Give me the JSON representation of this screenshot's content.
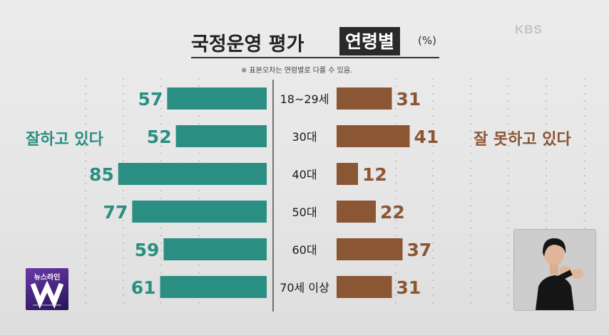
{
  "header": {
    "broadcaster_logo": "KBS",
    "title": "국정운영 평가",
    "title_highlight": "연령별",
    "unit": "(%)",
    "note": "※ 표본오차는 연령별로 다를 수 있음."
  },
  "legend": {
    "left_label": "잘하고 있다",
    "right_label": "잘 못하고 있다"
  },
  "colors": {
    "positive": "#2a8f82",
    "positive_text": "#2a8f82",
    "negative": "#8b5634",
    "negative_text": "#8b5634",
    "center_line": "#333333"
  },
  "program_logo": {
    "text": "뉴스라인",
    "icon": "w-letter-icon"
  },
  "interpreter": {
    "icon": "sign-language-interpreter-icon"
  },
  "chart_data": {
    "type": "bar",
    "categories": [
      "18~29세",
      "30대",
      "40대",
      "50대",
      "60대",
      "70세 이상"
    ],
    "series": [
      {
        "name": "잘하고 있다",
        "values": [
          57,
          52,
          85,
          77,
          59,
          61
        ]
      },
      {
        "name": "잘 못하고 있다",
        "values": [
          31,
          41,
          12,
          22,
          37,
          31
        ]
      }
    ],
    "title": "국정운영 평가 연령별",
    "xlabel": "",
    "ylabel": "",
    "grid": true,
    "orientation": "horizontal-butterfly"
  }
}
